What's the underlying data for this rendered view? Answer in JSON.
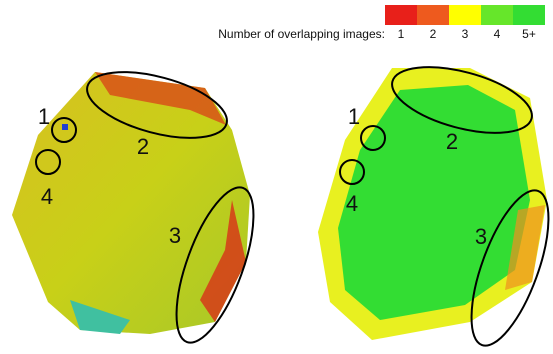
{
  "legend": {
    "title": "Number of overlapping images:",
    "items": [
      {
        "label": "1",
        "color": "#e8201a"
      },
      {
        "label": "2",
        "color": "#ee5a1e"
      },
      {
        "label": "3",
        "color": "#ffff00"
      },
      {
        "label": "4",
        "color": "#66e62a"
      },
      {
        "label": "5+",
        "color": "#33dd33"
      }
    ]
  },
  "maps": [
    {
      "annotations": [
        "1",
        "2",
        "3",
        "4"
      ]
    },
    {
      "annotations": [
        "1",
        "2",
        "3",
        "4"
      ]
    }
  ]
}
